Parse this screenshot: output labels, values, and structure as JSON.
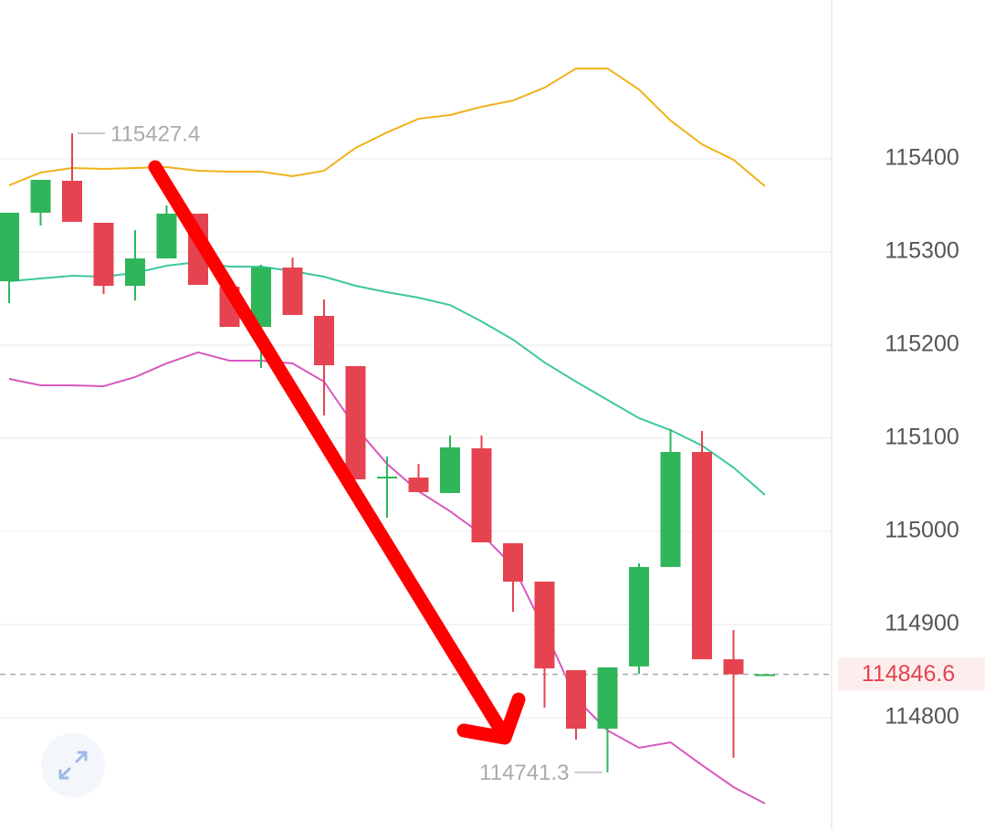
{
  "chart_data": {
    "type": "candlestick",
    "open": [
      115268.6,
      115342.2,
      115376.5,
      115331.4,
      115263.7,
      115293.1,
      115341.2,
      115262.7,
      115219.6,
      115283.3,
      115231.4,
      115177.5,
      115056.9,
      115057.8,
      115041.2,
      115089.2,
      114987.3,
      114946.1,
      114851,
      114788.2,
      114855,
      114961.8,
      115085.3,
      114862.7,
      114846.6
    ],
    "high": [
      115342.2,
      115377.5,
      115427.4,
      115331.4,
      115323.5,
      115350,
      115341.2,
      115271.6,
      115286.3,
      115294,
      115249,
      115177.5,
      115080.4,
      115072.5,
      115103,
      115103,
      114987.3,
      114946.1,
      114851,
      114854,
      114965.7,
      115109.8,
      115107.8,
      114894.1,
      114846.6
    ],
    "low": [
      115245.1,
      115328.4,
      115332.4,
      115254.9,
      115248,
      115293.1,
      115264.7,
      115219.6,
      115175.5,
      115232.4,
      115124.5,
      115055.9,
      115014.7,
      115042.2,
      115041.2,
      114988.2,
      114913.7,
      114810.8,
      114776.5,
      114741.3,
      114847,
      114961.8,
      114862.7,
      114756.9,
      114846.6
    ],
    "close": [
      115342.2,
      115377.5,
      115332.4,
      115263.7,
      115293.1,
      115341.2,
      115264.7,
      115219.6,
      115283.3,
      115232.4,
      115178.4,
      115055.9,
      115058.8,
      115042.2,
      115090.2,
      114988.2,
      114946.1,
      114852.9,
      114788.2,
      114854,
      114961.8,
      115085.3,
      114862.7,
      114846.6,
      114846.6
    ],
    "up_color": "#2fb65a",
    "down_color": "#e5434f",
    "bands": [
      {
        "color": "#f0b21c",
        "values": [
          115371.6,
          115385.3,
          115390.2,
          115389.2,
          115390.2,
          115391.2,
          115387.3,
          115386.3,
          115386.3,
          115381.4,
          115387.3,
          115411.8,
          115428.4,
          115443.1,
          115447.1,
          115455.9,
          115462.7,
          115476.5,
          115497.1,
          115497.1,
          115474.5,
          115441.2,
          115415.7,
          115399.0,
          115370.6
        ]
      },
      {
        "color": "#3cc8a0",
        "values": [
          115268.6,
          115271.6,
          115274.5,
          115273.5,
          115277.5,
          115285.3,
          115289.2,
          115284.3,
          115284.3,
          115279.4,
          115273.5,
          115263.7,
          115256.9,
          115251,
          115243.1,
          115225.5,
          115205.9,
          115181.4,
          115160.8,
          115141.2,
          115121.6,
          115108.8,
          115092.2,
          115068.6,
          115039.2
        ]
      },
      {
        "color": "#d957c0",
        "values": [
          115163.7,
          115156.9,
          115156.9,
          115155.9,
          115165.7,
          115180.4,
          115192.2,
          115183.3,
          115183.3,
          115180.4,
          115160.8,
          115111.8,
          115072.5,
          115043.1,
          115021.6,
          114997.1,
          114962.7,
          114894.1,
          114820.6,
          114786.3,
          114767.6,
          114773.5,
          114749,
          114725.5,
          114707.8
        ]
      }
    ],
    "ylim": [
      114688.2,
      115570.6
    ],
    "yticks": [
      114800,
      114900,
      115000,
      115100,
      115200,
      115300,
      115400
    ],
    "grid": true
  }
}
